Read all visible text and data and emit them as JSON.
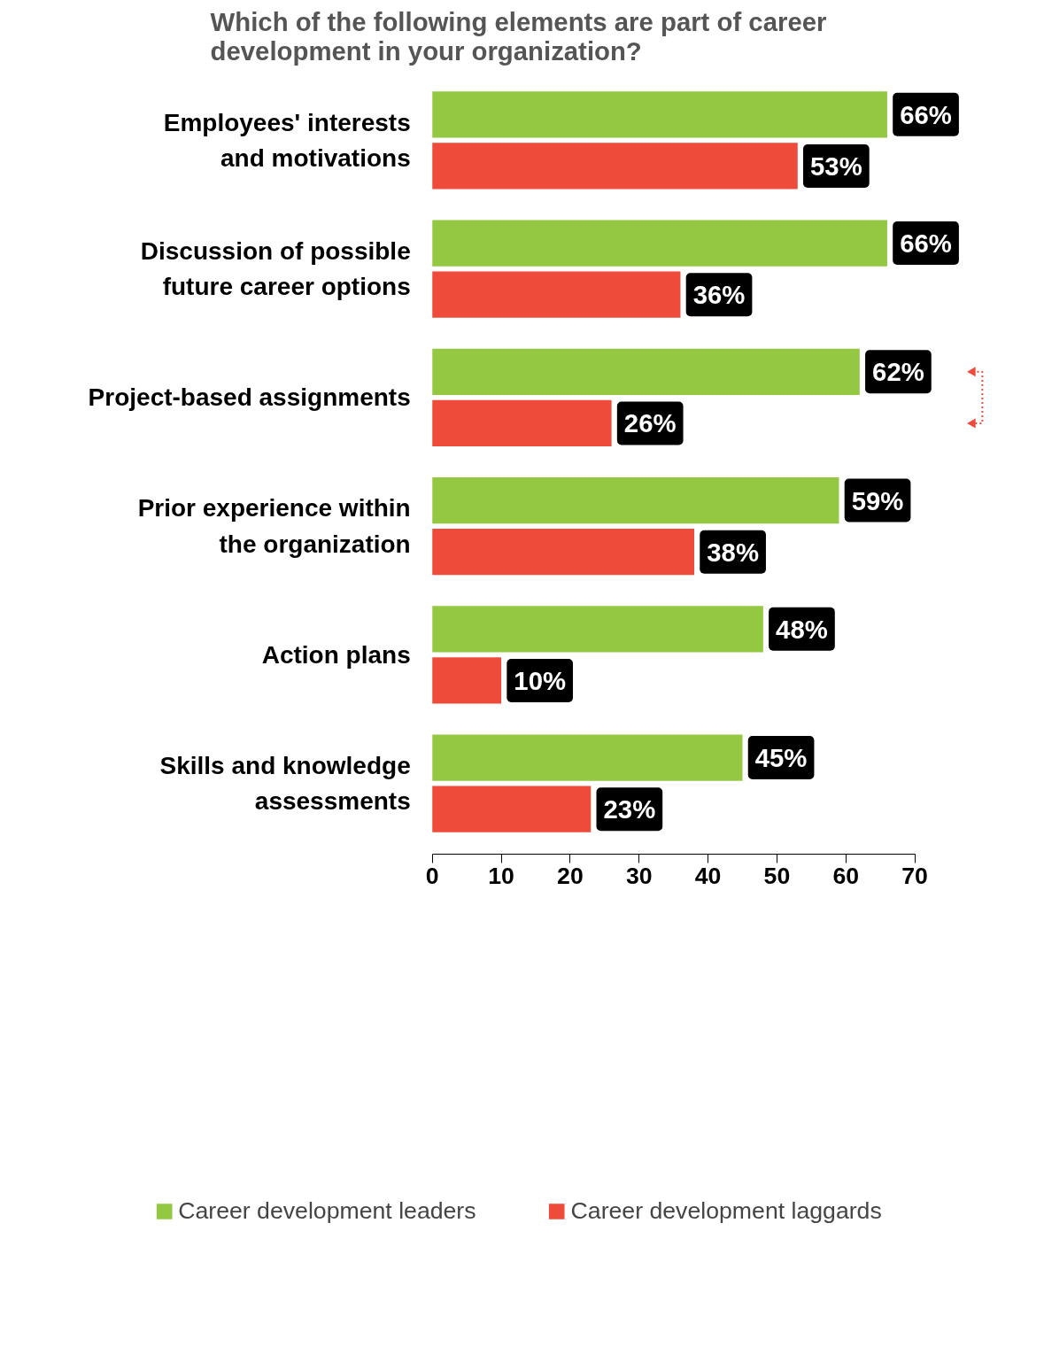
{
  "chart_data": {
    "type": "bar",
    "orientation": "horizontal",
    "title": "Which of the following elements are part of career development in your organization?",
    "categories": [
      "Employees' interests and motivations",
      "Discussion of possible future career options",
      "Project-based assignments",
      "Prior experience within the organization",
      "Action plans",
      "Skills and knowledge assessments"
    ],
    "series": [
      {
        "name": "Career development leaders",
        "color": "#95c842",
        "values": [
          66,
          66,
          62,
          59,
          48,
          45
        ],
        "value_labels": [
          "66%",
          "66%",
          "62%",
          "59%",
          "48%",
          "45%"
        ]
      },
      {
        "name": "Career development laggards",
        "color": "#ee4b3b",
        "values": [
          53,
          36,
          26,
          38,
          10,
          23
        ],
        "value_labels": [
          "53%",
          "36%",
          "26%",
          "38%",
          "10%",
          "23%"
        ]
      }
    ],
    "xlim": [
      0,
      70
    ],
    "xticks": [
      0,
      10,
      20,
      30,
      40,
      50,
      60,
      70
    ],
    "grid": false,
    "legend": "bottom"
  }
}
